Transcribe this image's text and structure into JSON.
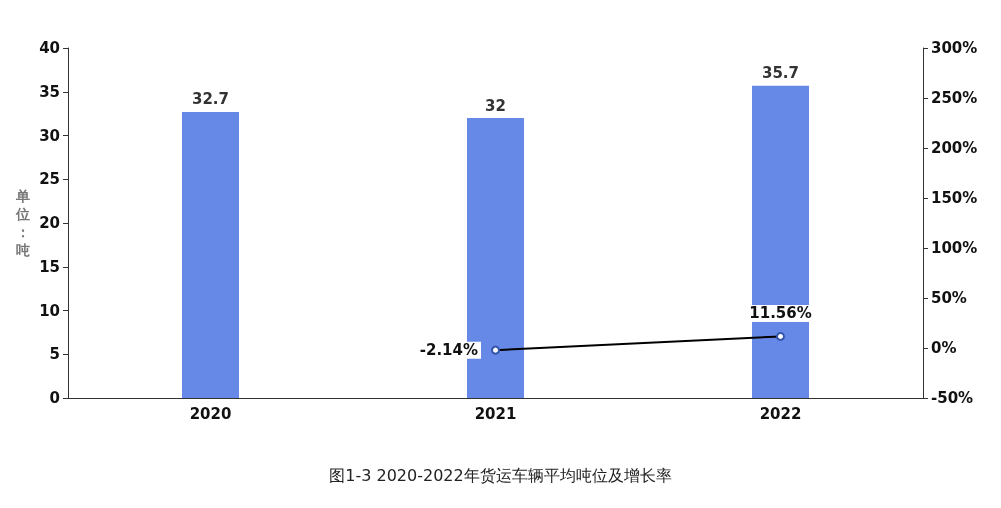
{
  "chart_data": {
    "type": "bar",
    "title": "图1-3 2020-2022年货运车辆平均吨位及增长率",
    "ylabel": "单位：吨",
    "categories": [
      "2020",
      "2021",
      "2022"
    ],
    "series": [
      {
        "color": "#6688e6",
        "values": [
          32.7,
          32,
          35.7
        ]
      },
      {
        "type": "line",
        "axis": "y2",
        "color": "#000000",
        "values": [
          null,
          -2.14,
          11.56
        ],
        "value_labels": [
          null,
          "-2.14%",
          "11.56%"
        ],
        "marker": "circle"
      }
    ],
    "data_labels": true,
    "ylim": [
      0,
      40
    ],
    "yticks": [
      0,
      5,
      10,
      15,
      20,
      25,
      30,
      35,
      40
    ],
    "y2lim": [
      -50,
      300
    ],
    "y2ticks": [
      {
        "value": -50,
        "label": "-50%"
      },
      {
        "value": 0,
        "label": "0%"
      },
      {
        "value": 50,
        "label": "50%"
      },
      {
        "value": 100,
        "label": "100%"
      },
      {
        "value": 150,
        "label": "150%"
      },
      {
        "value": 200,
        "label": "200%"
      },
      {
        "value": 250,
        "label": "250%"
      },
      {
        "value": 300,
        "label": "300%"
      }
    ],
    "grid": false
  }
}
